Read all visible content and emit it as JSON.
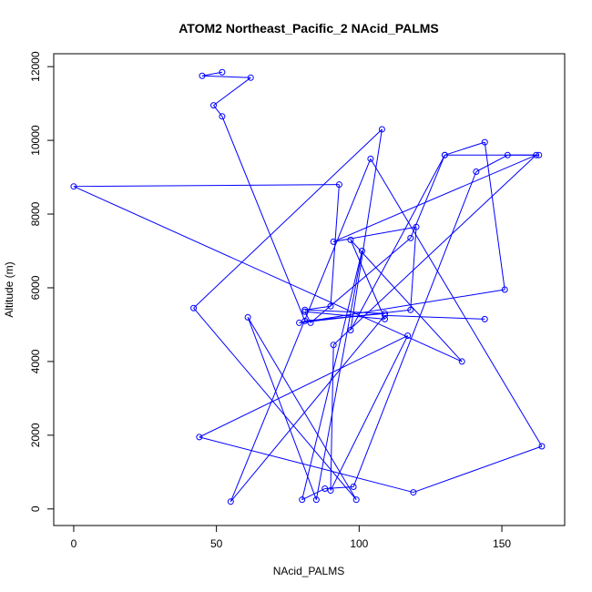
{
  "chart_data": {
    "type": "line",
    "title": "ATOM2 Northeast_Pacific_2 NAcid_PALMS",
    "xlabel": "NAcid_PALMS",
    "ylabel": "Altitude (m)",
    "xlim": [
      -7,
      172
    ],
    "ylim": [
      -450,
      12350
    ],
    "xticks": [
      0,
      50,
      100,
      150
    ],
    "yticks": [
      0,
      2000,
      4000,
      6000,
      8000,
      10000,
      12000
    ],
    "grid": false,
    "legend": "none",
    "color": "#0000ff",
    "marker": "open-circle",
    "series": [
      {
        "points": [
          [
            52,
            11850
          ],
          [
            45,
            11750
          ],
          [
            62,
            11700
          ],
          [
            49,
            10950
          ],
          [
            52,
            10650
          ],
          [
            81,
            5100
          ],
          [
            109,
            5300
          ],
          [
            81,
            5400
          ],
          [
            90,
            5500
          ],
          [
            93,
            8800
          ],
          [
            0,
            8750
          ],
          [
            136,
            4000
          ],
          [
            97,
            7300
          ],
          [
            109,
            5150
          ],
          [
            81,
            5350
          ],
          [
            83,
            5050
          ],
          [
            118,
            7350
          ],
          [
            130,
            9600
          ],
          [
            97,
            4850
          ],
          [
            108,
            10300
          ],
          [
            42,
            5450
          ],
          [
            99,
            250
          ],
          [
            61,
            5200
          ],
          [
            85,
            250
          ],
          [
            101,
            7000
          ],
          [
            80,
            250
          ],
          [
            88,
            550
          ],
          [
            98,
            600
          ],
          [
            141,
            9150
          ],
          [
            152,
            9600
          ],
          [
            163,
            9600
          ],
          [
            130,
            9600
          ],
          [
            144,
            9950
          ],
          [
            151,
            5950
          ],
          [
            79,
            5050
          ],
          [
            118,
            5400
          ],
          [
            120,
            7650
          ],
          [
            91,
            7250
          ],
          [
            162,
            9600
          ],
          [
            91,
            4450
          ],
          [
            90,
            500
          ],
          [
            117,
            4700
          ],
          [
            44,
            1950
          ],
          [
            119,
            450
          ],
          [
            164,
            1700
          ],
          [
            104,
            9500
          ],
          [
            55,
            200
          ],
          [
            109,
            5250
          ],
          [
            144,
            5150
          ]
        ]
      }
    ]
  }
}
